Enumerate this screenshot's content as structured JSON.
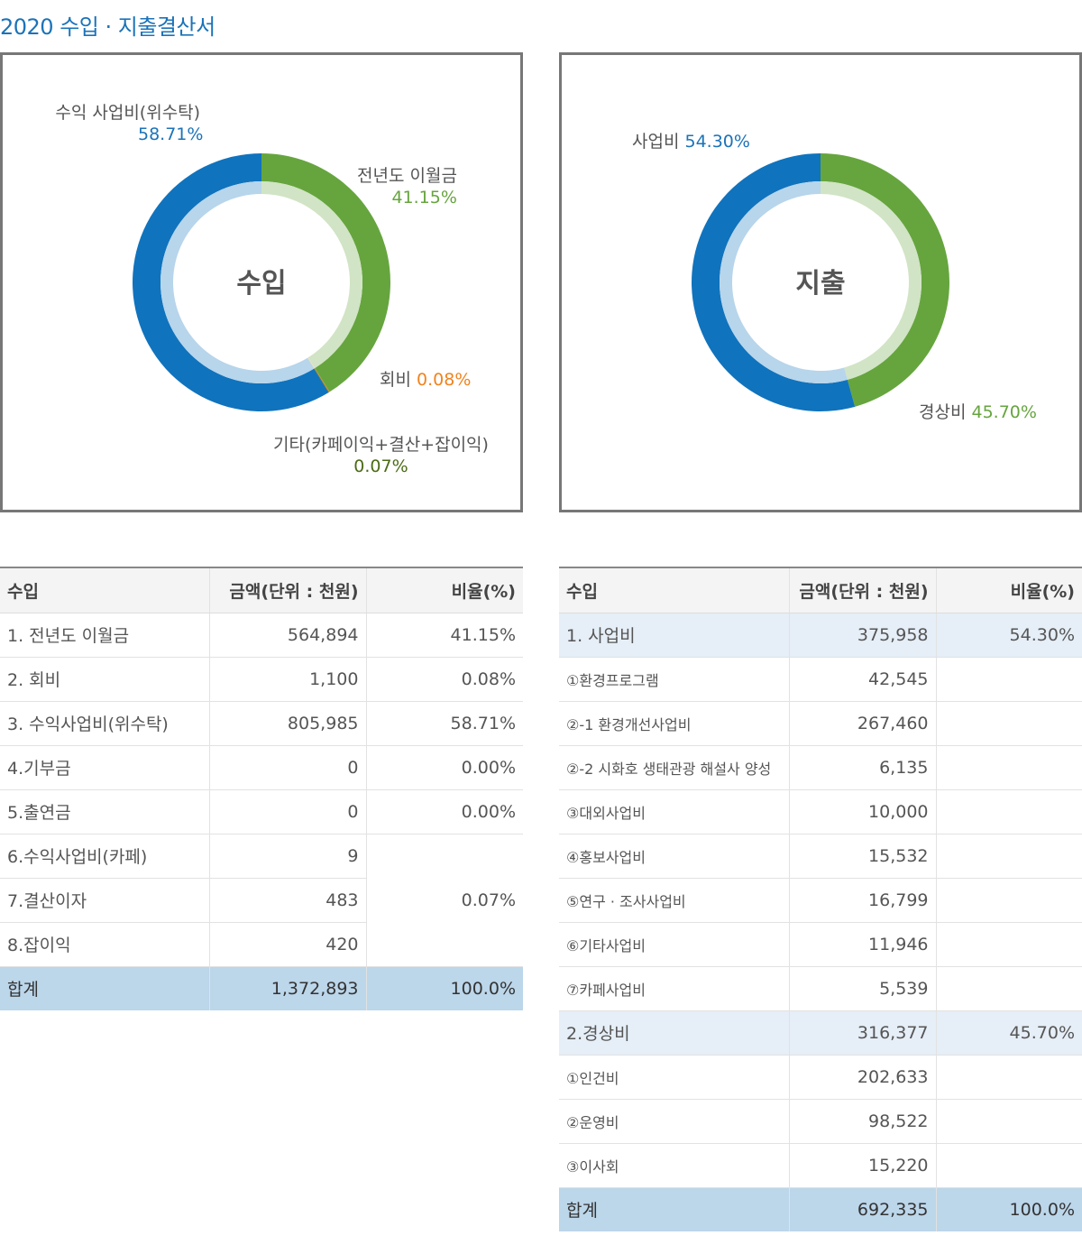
{
  "page_title": "2020 수입 · 지출결산서",
  "colors": {
    "blue": "#1073bd",
    "light_blue": "#bad8ee",
    "green": "#66a53e",
    "light_green": "#d6e9c9",
    "orange": "#f0831f",
    "olive": "#4c6b16"
  },
  "chart_data": [
    {
      "type": "donut",
      "center_label": "수입",
      "slices": [
        {
          "label": "전년도 이월금",
          "value": 41.15,
          "value_text": "41.15%",
          "color": "#66a53e"
        },
        {
          "label": "회비",
          "value": 0.08,
          "value_text": "0.08%",
          "color": "#f0831f"
        },
        {
          "label": "기타(카페이익+결산+잡이익)",
          "value": 0.07,
          "value_text": "0.07%",
          "color": "#4c6b16"
        },
        {
          "label": "수익 사업비(위수탁)",
          "value": 58.71,
          "value_text": "58.71%",
          "color": "#1073bd"
        }
      ]
    },
    {
      "type": "donut",
      "center_label": "지출",
      "slices": [
        {
          "label": "경상비",
          "value": 45.7,
          "value_text": "45.70%",
          "color": "#66a53e"
        },
        {
          "label": "사업비",
          "value": 54.3,
          "value_text": "54.30%",
          "color": "#1073bd"
        }
      ]
    }
  ],
  "income_table": {
    "headers": [
      "수입",
      "금액(단위 : 천원)",
      "비율(%)"
    ],
    "rows": [
      {
        "label": "1. 전년도 이월금",
        "amount": "564,894",
        "ratio": "41.15%"
      },
      {
        "label": "2. 회비",
        "amount": "1,100",
        "ratio": "0.08%"
      },
      {
        "label": "3. 수익사업비(위수탁)",
        "amount": "805,985",
        "ratio": "58.71%"
      },
      {
        "label": "4.기부금",
        "amount": "0",
        "ratio": "0.00%"
      },
      {
        "label": "5.출연금",
        "amount": "0",
        "ratio": "0.00%"
      },
      {
        "label": "6.수익사업비(카페)",
        "amount": "9"
      },
      {
        "label": "7.결산이자",
        "amount": "483"
      },
      {
        "label": "8.잡이익",
        "amount": "420"
      }
    ],
    "merged_ratio": "0.07%",
    "total": {
      "label": "합계",
      "amount": "1,372,893",
      "ratio": "100.0%"
    }
  },
  "expense_table": {
    "headers": [
      "수입",
      "금액(단위 : 천원)",
      "비율(%)"
    ],
    "rows": [
      {
        "label": "1. 사업비",
        "amount": "375,958",
        "ratio": "54.30%",
        "category": true
      },
      {
        "label": "①환경프로그램",
        "amount": "42,545",
        "ratio": ""
      },
      {
        "label": "②-1 환경개선사업비",
        "amount": "267,460",
        "ratio": ""
      },
      {
        "label": "②-2 시화호 생태관광 해설사 양성",
        "amount": "6,135",
        "ratio": ""
      },
      {
        "label": "③대외사업비",
        "amount": "10,000",
        "ratio": ""
      },
      {
        "label": "④홍보사업비",
        "amount": "15,532",
        "ratio": ""
      },
      {
        "label": "⑤연구 · 조사사업비",
        "amount": "16,799",
        "ratio": ""
      },
      {
        "label": "⑥기타사업비",
        "amount": "11,946",
        "ratio": ""
      },
      {
        "label": "⑦카페사업비",
        "amount": "5,539",
        "ratio": ""
      },
      {
        "label": "2.경상비",
        "amount": "316,377",
        "ratio": "45.70%",
        "category": true
      },
      {
        "label": "①인건비",
        "amount": "202,633",
        "ratio": ""
      },
      {
        "label": "②운영비",
        "amount": "98,522",
        "ratio": ""
      },
      {
        "label": "③이사회",
        "amount": "15,220",
        "ratio": ""
      }
    ],
    "total": {
      "label": "합계",
      "amount": "692,335",
      "ratio": "100.0%"
    }
  }
}
